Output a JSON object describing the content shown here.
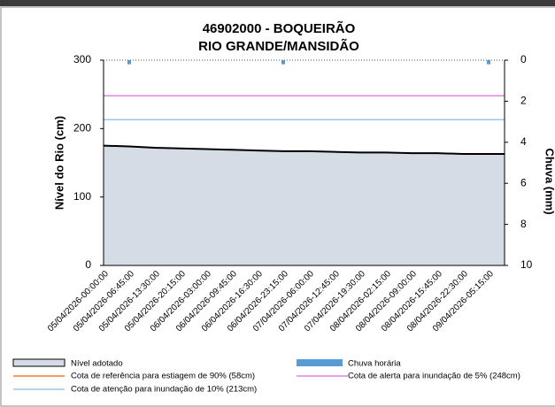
{
  "chart_data": {
    "type": "area",
    "title": "46902000 - BOQUEIRÃO",
    "subtitle": "RIO GRANDE/MANSIDÃO",
    "y_label": "Nível do Rio (cm)",
    "y2_label": "Chuva (mm)",
    "categories": [
      "05/04/2026-00:00:00",
      "05/04/2026-06:45:00",
      "05/04/2026-13:30:00",
      "05/04/2026-20:15:00",
      "06/04/2026-03:00:00",
      "06/04/2026-09:45:00",
      "06/04/2026-16:30:00",
      "06/04/2026-23:15:00",
      "07/04/2026-06:00:00",
      "07/04/2026-12:45:00",
      "07/04/2026-19:30:00",
      "08/04/2026-02:15:00",
      "08/04/2026-09:00:00",
      "08/04/2026-15:45:00",
      "08/04/2026-22:30:00",
      "09/04/2026-05:15:00"
    ],
    "series": [
      {
        "name": "Nível adotado",
        "color": "#d6dce5",
        "line_color": "#000000",
        "values": [
          175,
          174,
          172,
          171,
          170,
          169,
          168,
          167,
          167,
          166,
          165,
          165,
          164,
          164,
          163,
          163
        ]
      },
      {
        "name": "Chuva horária",
        "color": "#5b9bd5",
        "axis": "y2",
        "values": [
          0,
          0.2,
          0,
          0,
          0,
          0,
          0,
          0.2,
          0,
          0,
          0,
          0,
          0,
          0,
          0,
          0.2
        ]
      }
    ],
    "reference_lines": [
      {
        "name": "Cota de referência para estiagem de 90% (58cm)",
        "value": 58,
        "color": "#ed7d31"
      },
      {
        "name": "Cota de alerta para inundação de 5% (248cm)",
        "value": 248,
        "color": "#e080e0"
      },
      {
        "name": "Cota de atenção para inundação de 10% (213cm)",
        "value": 213,
        "color": "#9dc3e6"
      }
    ],
    "ylim": [
      0,
      300
    ],
    "yticks": [
      0,
      100,
      200,
      300
    ],
    "y2lim": [
      0,
      10
    ],
    "y2ticks": [
      0,
      2,
      4,
      6,
      8,
      10
    ],
    "y2_inverted": true
  }
}
